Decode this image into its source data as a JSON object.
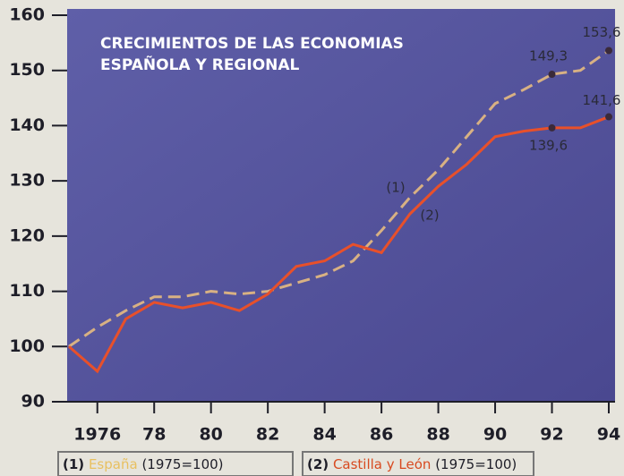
{
  "chart_data": {
    "type": "line",
    "title": [
      "CRECIMIENTOS DE LAS ECONOMIAS",
      "ESPAÑOLA Y REGIONAL"
    ],
    "base_note": "(1975=100)",
    "x": [
      1975,
      1976,
      1977,
      1978,
      1979,
      1980,
      1981,
      1982,
      1983,
      1984,
      1985,
      1986,
      1987,
      1988,
      1989,
      1990,
      1991,
      1992,
      1993,
      1994
    ],
    "xlim": [
      1975,
      1994
    ],
    "xticks": [
      1976,
      {
        "value": 1978,
        "label": "78"
      },
      {
        "value": 1980,
        "label": "80"
      },
      {
        "value": 1982,
        "label": "82"
      },
      {
        "value": 1984,
        "label": "84"
      },
      {
        "value": 1986,
        "label": "86"
      },
      {
        "value": 1988,
        "label": "88"
      },
      {
        "value": 1990,
        "label": "90"
      },
      {
        "value": 1992,
        "label": "92"
      },
      {
        "value": 1994,
        "label": "94"
      }
    ],
    "ylim": [
      90,
      160
    ],
    "yticks": [
      90,
      100,
      110,
      120,
      130,
      140,
      150,
      160
    ],
    "series": [
      {
        "name": "España",
        "marker": "(1)",
        "color": "#d8b183",
        "name_color": "#e8c060",
        "dashed": true,
        "values": [
          100,
          103.5,
          106.5,
          109,
          109,
          110,
          109.5,
          110,
          111.5,
          113,
          115.5,
          121,
          127,
          132,
          138,
          144,
          146.5,
          149.3,
          150,
          153.6
        ],
        "value_labels": [
          null,
          null,
          null,
          null,
          null,
          null,
          null,
          null,
          null,
          null,
          null,
          null,
          null,
          null,
          null,
          null,
          null,
          "149,3",
          null,
          "153,6"
        ]
      },
      {
        "name": "Castilla y León",
        "marker": "(2)",
        "color": "#e8502a",
        "name_color": "#d84a20",
        "dashed": false,
        "values": [
          100,
          95.5,
          105,
          108,
          107,
          108,
          106.5,
          109.5,
          114.5,
          115.5,
          118.5,
          117,
          124,
          129,
          133,
          138,
          139,
          139.6,
          139.6,
          141.6
        ],
        "value_labels": [
          null,
          null,
          null,
          null,
          null,
          null,
          null,
          null,
          null,
          null,
          null,
          null,
          null,
          null,
          null,
          null,
          null,
          "139,6",
          null,
          "141,6"
        ]
      }
    ]
  }
}
